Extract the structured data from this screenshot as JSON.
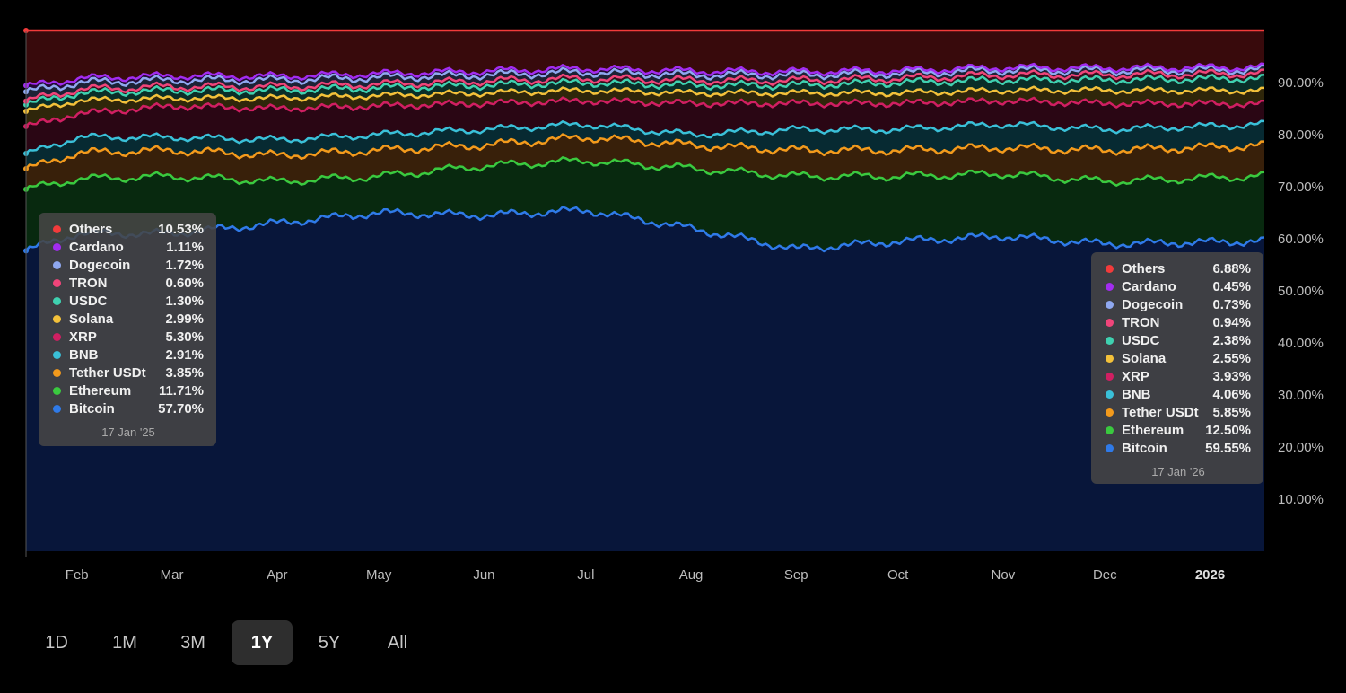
{
  "chart_data": {
    "type": "area",
    "stacked": true,
    "title": "",
    "xlabel": "",
    "ylabel": "",
    "ylim": [
      0,
      100
    ],
    "y_ticks": [
      "10.00%",
      "20.00%",
      "30.00%",
      "40.00%",
      "50.00%",
      "60.00%",
      "70.00%",
      "80.00%",
      "90.00%"
    ],
    "y_tick_values": [
      10,
      20,
      30,
      40,
      50,
      60,
      70,
      80,
      90
    ],
    "x_ticks": [
      "Feb",
      "Mar",
      "Apr",
      "May",
      "Jun",
      "Jul",
      "Aug",
      "Sep",
      "Oct",
      "Nov",
      "Dec",
      "2026"
    ],
    "x_tick_days": [
      15,
      43,
      74,
      104,
      135,
      165,
      196,
      227,
      257,
      288,
      318,
      349
    ],
    "x_range_days": [
      0,
      365
    ],
    "x_dates": [
      "17 Jan '25",
      "1 Feb",
      "1 Mar",
      "1 Apr",
      "1 May",
      "1 Jun",
      "1 Jul",
      "1 Aug",
      "1 Sep",
      "1 Oct",
      "1 Nov",
      "1 Dec",
      "17 Jan '26"
    ],
    "x_days": [
      0,
      15,
      43,
      74,
      104,
      135,
      165,
      196,
      227,
      257,
      288,
      318,
      365
    ],
    "series": [
      {
        "name": "Bitcoin",
        "color": "#2f7ae8",
        "fill": "#08163a",
        "values": [
          57.7,
          61,
          61,
          63,
          65,
          64.5,
          65.5,
          62,
          58,
          59.5,
          60.5,
          59,
          59.55
        ]
      },
      {
        "name": "Ethereum",
        "color": "#3ac93f",
        "fill": "#08290f",
        "values": [
          11.71,
          10.5,
          11,
          8,
          7,
          9.5,
          9.5,
          11.5,
          14,
          12.5,
          12,
          12,
          12.5
        ]
      },
      {
        "name": "Tether USDt",
        "color": "#f39a1c",
        "fill": "#38200a",
        "values": [
          3.85,
          5,
          5,
          5,
          5,
          4,
          4.5,
          4.5,
          5,
          5,
          5,
          6,
          5.85
        ]
      },
      {
        "name": "BNB",
        "color": "#3ac0d8",
        "fill": "#072a32",
        "values": [
          2.91,
          3,
          2.5,
          3,
          3,
          3,
          2.5,
          2,
          4,
          4,
          4.5,
          4,
          4.06
        ]
      },
      {
        "name": "XRP",
        "color": "#d01f62",
        "fill": "#2a0614",
        "values": [
          5.3,
          4.5,
          6,
          6,
          5.5,
          5,
          4.5,
          6,
          5,
          5,
          4.5,
          5,
          3.93
        ]
      },
      {
        "name": "Solana",
        "color": "#f3c13a",
        "fill": "#2f260a",
        "values": [
          2.99,
          2.5,
          1.5,
          2,
          2,
          2,
          2,
          2,
          2,
          2,
          2,
          2.5,
          2.55
        ]
      },
      {
        "name": "USDC",
        "color": "#3fd1b0",
        "fill": "#0a2e28",
        "values": [
          1.3,
          1.5,
          1.5,
          1.5,
          1.5,
          1.5,
          1.5,
          1.5,
          1.5,
          2,
          2,
          2,
          2.38
        ]
      },
      {
        "name": "TRON",
        "color": "#f0457a",
        "fill": "#33101c",
        "values": [
          0.6,
          0.7,
          0.7,
          0.7,
          0.7,
          0.8,
          0.8,
          0.9,
          0.9,
          0.8,
          1,
          1,
          0.94
        ]
      },
      {
        "name": "Dogecoin",
        "color": "#8fa8f0",
        "fill": "#1c2236",
        "values": [
          1.72,
          1.3,
          1.3,
          1.3,
          1.3,
          1.2,
          1.2,
          1.1,
          1.1,
          1,
          0.9,
          0.8,
          0.73
        ]
      },
      {
        "name": "Cardano",
        "color": "#a22cf0",
        "fill": "#240a36",
        "values": [
          1.11,
          0.8,
          0.8,
          0.7,
          0.7,
          0.7,
          0.7,
          0.7,
          0.6,
          0.5,
          0.5,
          0.5,
          0.45
        ]
      },
      {
        "name": "Others",
        "color": "#f23b3b",
        "fill": "#380a0c",
        "values": [
          10.53,
          9.2,
          8.7,
          8.8,
          8.3,
          7.8,
          7.3,
          7.8,
          7.9,
          7.7,
          7.1,
          7.2,
          6.88
        ]
      }
    ],
    "tooltips": [
      {
        "date": "17 Jan '25",
        "rows": [
          {
            "name": "Others",
            "value": "10.53%",
            "color": "#f23b3b"
          },
          {
            "name": "Cardano",
            "value": "1.11%",
            "color": "#a22cf0"
          },
          {
            "name": "Dogecoin",
            "value": "1.72%",
            "color": "#8fa8f0"
          },
          {
            "name": "TRON",
            "value": "0.60%",
            "color": "#f0457a"
          },
          {
            "name": "USDC",
            "value": "1.30%",
            "color": "#3fd1b0"
          },
          {
            "name": "Solana",
            "value": "2.99%",
            "color": "#f3c13a"
          },
          {
            "name": "XRP",
            "value": "5.30%",
            "color": "#d01f62"
          },
          {
            "name": "BNB",
            "value": "2.91%",
            "color": "#3ac0d8"
          },
          {
            "name": "Tether USDt",
            "value": "3.85%",
            "color": "#f39a1c"
          },
          {
            "name": "Ethereum",
            "value": "11.71%",
            "color": "#3ac93f"
          },
          {
            "name": "Bitcoin",
            "value": "57.70%",
            "color": "#2f7ae8"
          }
        ]
      },
      {
        "date": "17 Jan '26",
        "rows": [
          {
            "name": "Others",
            "value": "6.88%",
            "color": "#f23b3b"
          },
          {
            "name": "Cardano",
            "value": "0.45%",
            "color": "#a22cf0"
          },
          {
            "name": "Dogecoin",
            "value": "0.73%",
            "color": "#8fa8f0"
          },
          {
            "name": "TRON",
            "value": "0.94%",
            "color": "#f0457a"
          },
          {
            "name": "USDC",
            "value": "2.38%",
            "color": "#3fd1b0"
          },
          {
            "name": "Solana",
            "value": "2.55%",
            "color": "#f3c13a"
          },
          {
            "name": "XRP",
            "value": "3.93%",
            "color": "#d01f62"
          },
          {
            "name": "BNB",
            "value": "4.06%",
            "color": "#3ac0d8"
          },
          {
            "name": "Tether USDt",
            "value": "5.85%",
            "color": "#f39a1c"
          },
          {
            "name": "Ethereum",
            "value": "12.50%",
            "color": "#3ac93f"
          },
          {
            "name": "Bitcoin",
            "value": "59.55%",
            "color": "#2f7ae8"
          }
        ]
      }
    ]
  },
  "ranges": {
    "items": [
      "1D",
      "1M",
      "3M",
      "1Y",
      "5Y",
      "All"
    ],
    "selected": "1Y"
  }
}
